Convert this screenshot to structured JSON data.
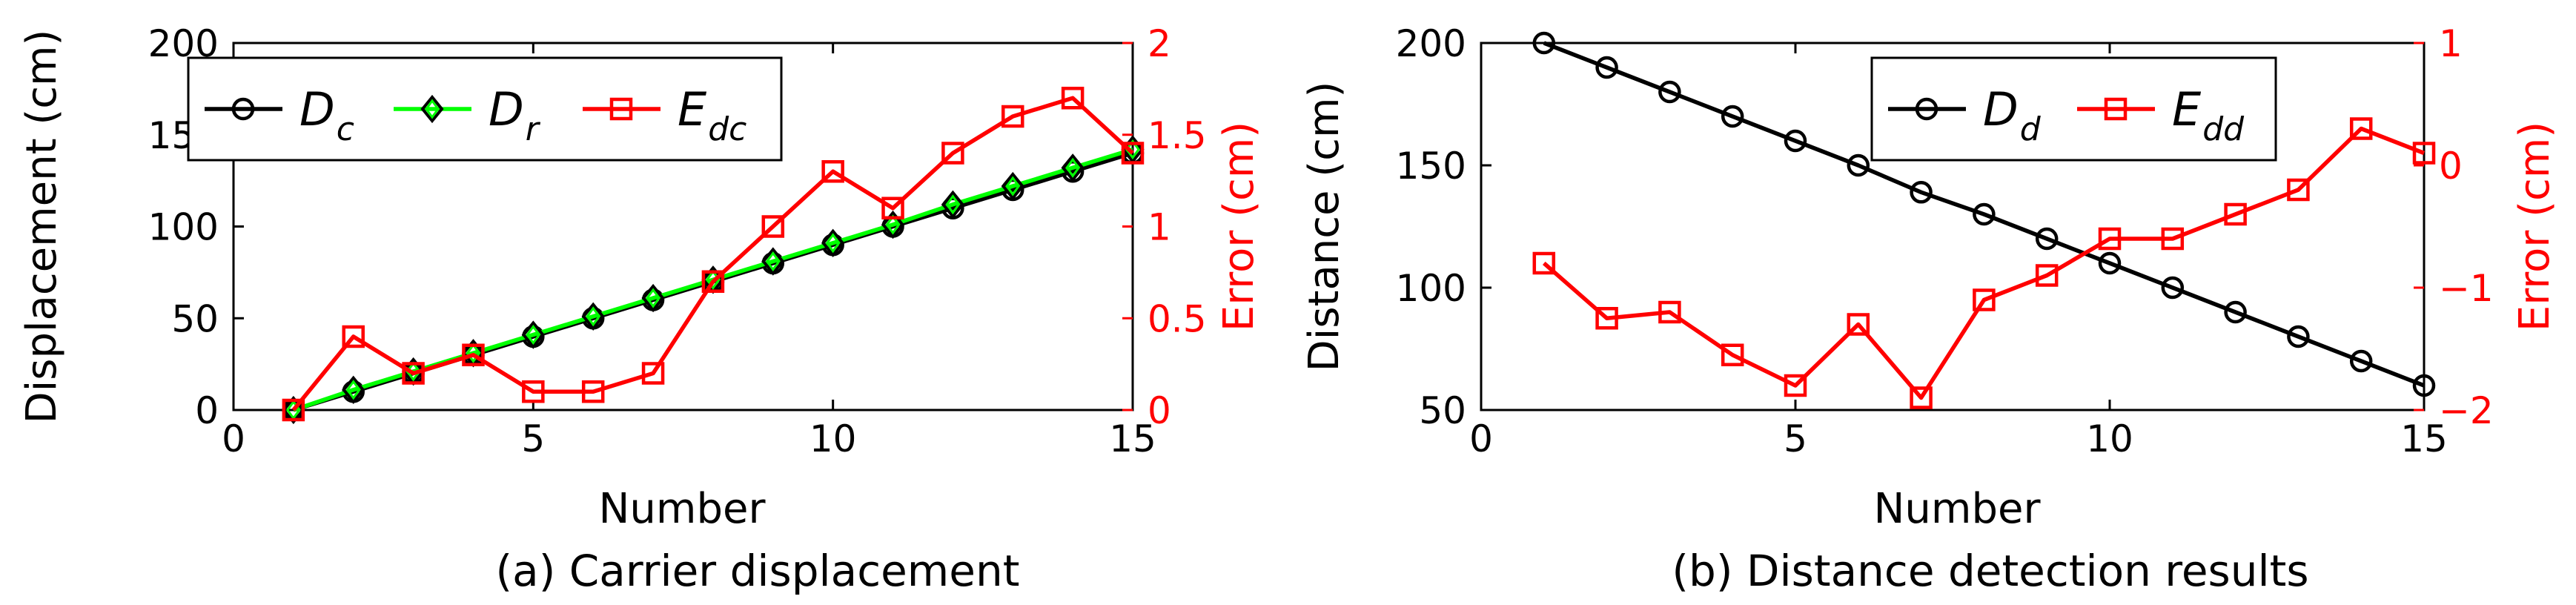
{
  "chart_data": [
    {
      "type": "line",
      "caption": "(a) Carrier displacement",
      "xlabel": "Number",
      "ylabel": "Displacement (cm)",
      "ylabel_right": "Error (cm)",
      "xlim": [
        0,
        15
      ],
      "xticks": [
        0,
        5,
        10,
        15
      ],
      "ylim": [
        0,
        200
      ],
      "yticks": [
        0,
        50,
        100,
        150,
        200
      ],
      "ylim_right": [
        0,
        2
      ],
      "yticks_right": [
        0,
        0.5,
        1,
        1.5,
        2
      ],
      "grid": false,
      "legend_placement": "top-left",
      "x": [
        1,
        2,
        3,
        4,
        5,
        6,
        7,
        8,
        9,
        10,
        11,
        12,
        13,
        14,
        15
      ],
      "series": [
        {
          "name": "D_c",
          "label_main": "D",
          "label_sub": "c",
          "axis": "left",
          "color": "#000000",
          "marker": "circle",
          "values": [
            0,
            10,
            20,
            30,
            40,
            50,
            60,
            70,
            80,
            90,
            100,
            110,
            120,
            130,
            140
          ]
        },
        {
          "name": "D_r",
          "label_main": "D",
          "label_sub": "r",
          "axis": "left",
          "color": "#00ff00",
          "marker": "diamond",
          "values": [
            0,
            11,
            21,
            31,
            41,
            51,
            61,
            71,
            81,
            91,
            101,
            112,
            122,
            132,
            142
          ]
        },
        {
          "name": "E_dc",
          "label_main": "E",
          "label_sub": "dc",
          "axis": "right",
          "color": "#ff0000",
          "marker": "square",
          "values": [
            0,
            0.4,
            0.2,
            0.3,
            0.1,
            0.1,
            0.2,
            0.7,
            1.0,
            1.3,
            1.1,
            1.4,
            1.6,
            1.7,
            1.4
          ]
        }
      ]
    },
    {
      "type": "line",
      "caption": "(b) Distance detection results",
      "xlabel": "Number",
      "ylabel": "Distance (cm)",
      "ylabel_right": "Error (cm)",
      "xlim": [
        0,
        15
      ],
      "xticks": [
        0,
        5,
        10,
        15
      ],
      "ylim": [
        50,
        200
      ],
      "yticks": [
        50,
        100,
        150,
        200
      ],
      "ylim_right": [
        -2,
        1
      ],
      "yticks_right": [
        -2,
        -1,
        0,
        1
      ],
      "grid": false,
      "legend_placement": "top-right",
      "x": [
        1,
        2,
        3,
        4,
        5,
        6,
        7,
        8,
        9,
        10,
        11,
        12,
        13,
        14,
        15
      ],
      "series": [
        {
          "name": "D_d",
          "label_main": "D",
          "label_sub": "d",
          "axis": "left",
          "color": "#000000",
          "marker": "circle",
          "values": [
            200,
            190,
            180,
            170,
            160,
            150,
            139,
            130,
            120,
            110,
            100,
            90,
            80,
            70,
            60
          ]
        },
        {
          "name": "E_dd",
          "label_main": "E",
          "label_sub": "dd",
          "axis": "right",
          "color": "#ff0000",
          "marker": "square",
          "values": [
            -0.8,
            -1.25,
            -1.2,
            -1.55,
            -1.8,
            -1.3,
            -1.9,
            -1.1,
            -0.9,
            -0.6,
            -0.6,
            -0.4,
            -0.2,
            0.3,
            0.1
          ]
        }
      ]
    }
  ]
}
